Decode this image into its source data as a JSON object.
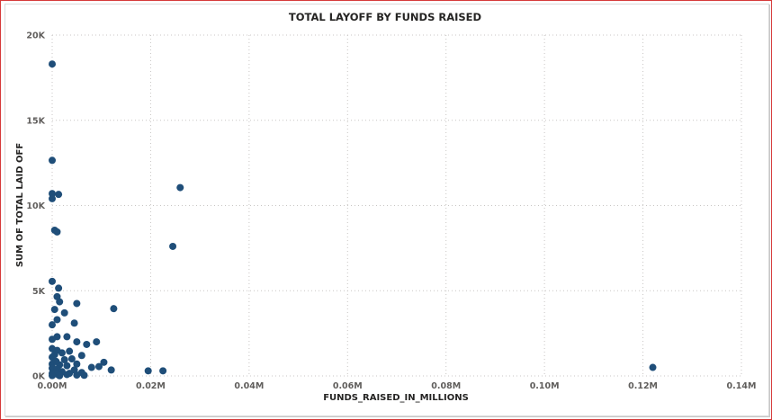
{
  "chart_data": {
    "type": "scatter",
    "title": "TOTAL LAYOFF BY FUNDS RAISED",
    "xlabel": "FUNDS_RAISED_IN_MILLIONS",
    "ylabel": "SUM OF TOTAL LAID OFF",
    "xlim": [
      0,
      0.14
    ],
    "ylim": [
      0,
      20000
    ],
    "x_ticks": [
      0,
      0.02,
      0.04,
      0.06,
      0.08,
      0.1,
      0.12,
      0.14
    ],
    "x_tick_labels": [
      "0.00M",
      "0.02M",
      "0.04M",
      "0.06M",
      "0.08M",
      "0.10M",
      "0.12M",
      "0.14M"
    ],
    "y_ticks": [
      0,
      5000,
      10000,
      15000,
      20000
    ],
    "y_tick_labels": [
      "0K",
      "5K",
      "10K",
      "15K",
      "20K"
    ],
    "grid": true,
    "color": "#1f4e79",
    "points": [
      [
        0.0,
        18300
      ],
      [
        0.0,
        12650
      ],
      [
        0.0,
        10700
      ],
      [
        0.0,
        10400
      ],
      [
        0.0013,
        10650
      ],
      [
        0.026,
        11050
      ],
      [
        0.0245,
        7600
      ],
      [
        0.0005,
        8550
      ],
      [
        0.001,
        8450
      ],
      [
        0.0,
        5550
      ],
      [
        0.0013,
        5150
      ],
      [
        0.001,
        4650
      ],
      [
        0.0015,
        4350
      ],
      [
        0.0005,
        3900
      ],
      [
        0.005,
        4250
      ],
      [
        0.0125,
        3950
      ],
      [
        0.0025,
        3700
      ],
      [
        0.001,
        3300
      ],
      [
        0.0045,
        3100
      ],
      [
        0.0,
        3000
      ],
      [
        0.001,
        2300
      ],
      [
        0.003,
        2300
      ],
      [
        0.0,
        2150
      ],
      [
        0.005,
        2000
      ],
      [
        0.007,
        1850
      ],
      [
        0.009,
        2000
      ],
      [
        0.0,
        1600
      ],
      [
        0.001,
        1500
      ],
      [
        0.0035,
        1450
      ],
      [
        0.002,
        1350
      ],
      [
        0.006,
        1200
      ],
      [
        0.0,
        1100
      ],
      [
        0.004,
        1000
      ],
      [
        0.0025,
        950
      ],
      [
        0.0105,
        800
      ],
      [
        0.0,
        700
      ],
      [
        0.0015,
        650
      ],
      [
        0.005,
        700
      ],
      [
        0.003,
        600
      ],
      [
        0.008,
        500
      ],
      [
        0.0095,
        550
      ],
      [
        0.0,
        450
      ],
      [
        0.001,
        400
      ],
      [
        0.0045,
        350
      ],
      [
        0.012,
        350
      ],
      [
        0.0195,
        300
      ],
      [
        0.0225,
        300
      ],
      [
        0.002,
        250
      ],
      [
        0.006,
        200
      ],
      [
        0.0,
        150
      ],
      [
        0.001,
        100
      ],
      [
        0.003,
        80
      ],
      [
        0.005,
        50
      ],
      [
        0.0065,
        40
      ],
      [
        0.0,
        20
      ],
      [
        0.0015,
        10
      ],
      [
        0.122,
        500
      ],
      [
        0.0005,
        1250
      ],
      [
        0.0008,
        850
      ],
      [
        0.0035,
        150
      ]
    ]
  }
}
